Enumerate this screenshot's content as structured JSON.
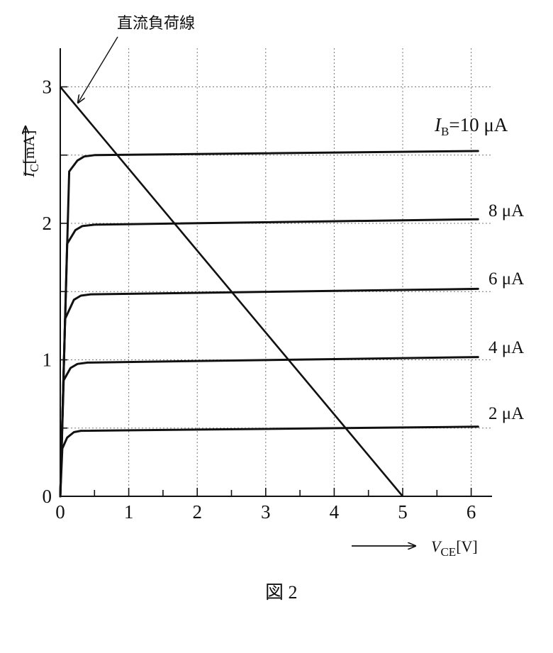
{
  "figure_caption": "図 2",
  "annotation_text": "直流負荷線",
  "chart_data": {
    "type": "line",
    "title": "",
    "xlabel": {
      "symbol": "V",
      "subscript": "CE",
      "unit": "[V]"
    },
    "ylabel": {
      "symbol": "I",
      "subscript": "C",
      "unit": "[mA]"
    },
    "xlim": [
      0,
      6.3
    ],
    "ylim": [
      0,
      3
    ],
    "x_ticks": [
      0,
      1,
      2,
      3,
      4,
      5,
      6
    ],
    "y_ticks": [
      0,
      1,
      2,
      3
    ],
    "grid": true,
    "grid_style": "dotted",
    "series": [
      {
        "name": "2 μA",
        "label_prefix": "",
        "points": [
          [
            0,
            0
          ],
          [
            0.03,
            0.35
          ],
          [
            0.1,
            0.43
          ],
          [
            0.2,
            0.47
          ],
          [
            0.3,
            0.48
          ],
          [
            6.1,
            0.51
          ]
        ]
      },
      {
        "name": "4 μA",
        "label_prefix": "",
        "points": [
          [
            0,
            0
          ],
          [
            0.05,
            0.85
          ],
          [
            0.15,
            0.94
          ],
          [
            0.25,
            0.97
          ],
          [
            0.4,
            0.98
          ],
          [
            6.1,
            1.02
          ]
        ]
      },
      {
        "name": "6 μA",
        "label_prefix": "",
        "points": [
          [
            0,
            0
          ],
          [
            0.07,
            1.3
          ],
          [
            0.2,
            1.44
          ],
          [
            0.3,
            1.47
          ],
          [
            0.45,
            1.48
          ],
          [
            6.1,
            1.52
          ]
        ]
      },
      {
        "name": "8 μA",
        "label_prefix": "",
        "points": [
          [
            0,
            0
          ],
          [
            0.1,
            1.85
          ],
          [
            0.22,
            1.95
          ],
          [
            0.32,
            1.98
          ],
          [
            0.5,
            1.99
          ],
          [
            6.1,
            2.03
          ]
        ]
      },
      {
        "name": "10 μA",
        "label_prefix": "=",
        "points": [
          [
            0,
            0
          ],
          [
            0.13,
            2.38
          ],
          [
            0.25,
            2.46
          ],
          [
            0.35,
            2.49
          ],
          [
            0.5,
            2.5
          ],
          [
            6.1,
            2.53
          ]
        ]
      }
    ],
    "load_line": {
      "points": [
        [
          0,
          3
        ],
        [
          5,
          0
        ]
      ]
    },
    "series_label_symbol": {
      "symbol": "I",
      "subscript": "B"
    }
  }
}
